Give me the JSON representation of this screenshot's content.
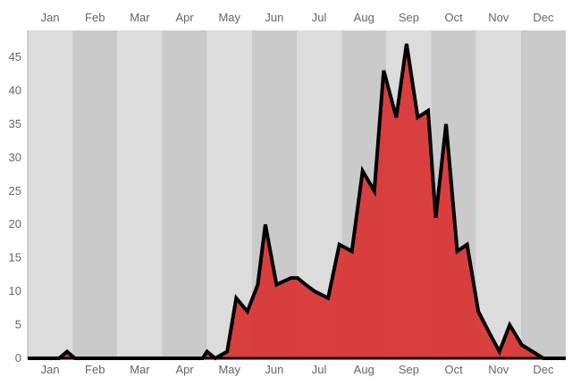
{
  "chart_data": {
    "type": "area",
    "months": [
      "Jan",
      "Feb",
      "Mar",
      "Apr",
      "May",
      "Jun",
      "Jul",
      "Aug",
      "Sep",
      "Oct",
      "Nov",
      "Dec"
    ],
    "ylim": [
      0,
      49
    ],
    "yticks": [
      0,
      5,
      10,
      15,
      20,
      25,
      30,
      35,
      40,
      45
    ],
    "x_range_months": [
      0,
      12
    ],
    "grid": "alternating month bands",
    "colors": {
      "fill": "#d93636",
      "line": "#000000",
      "band_light": "#dcdcdc",
      "band_dark": "#cacaca",
      "axis_text": "#666666"
    },
    "series": [
      {
        "x": [
          0,
          0.7,
          0.88,
          1.05,
          1.5,
          2.5,
          3.5,
          3.9,
          4.0,
          4.18,
          4.45,
          4.65,
          4.9,
          5.13,
          5.3,
          5.55,
          5.87,
          6.02,
          6.2,
          6.4,
          6.7,
          6.95,
          7.23,
          7.47,
          7.73,
          7.94,
          8.22,
          8.45,
          8.7,
          8.93,
          9.1,
          9.33,
          9.58,
          9.8,
          10.05,
          10.28,
          10.52,
          10.75,
          11.02,
          11.5,
          12
        ],
        "y": [
          0,
          0,
          1,
          0,
          0,
          0,
          0,
          0,
          1,
          0,
          1,
          9,
          7,
          11,
          20,
          11,
          12,
          12,
          11,
          10,
          9,
          17,
          16,
          28,
          25,
          43,
          36,
          47,
          36,
          37,
          21,
          35,
          16,
          17,
          7,
          4,
          1,
          5,
          2,
          0,
          0
        ]
      }
    ]
  }
}
